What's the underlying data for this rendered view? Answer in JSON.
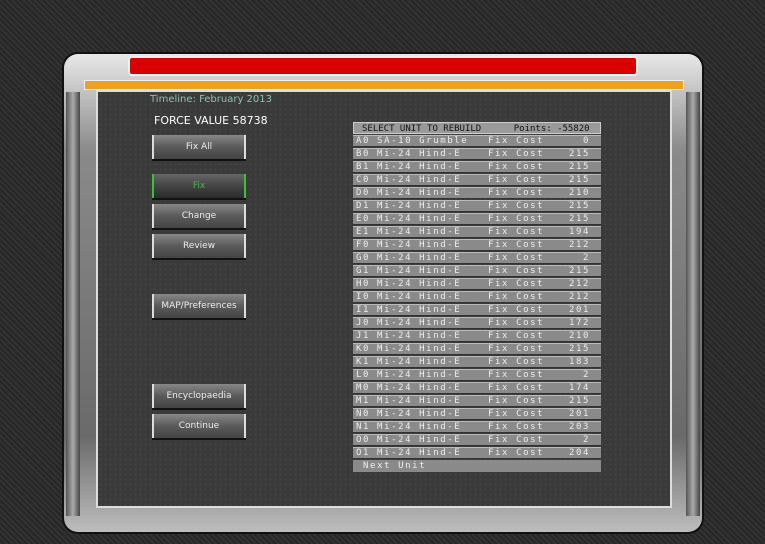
{
  "timeline": "Timeline: February 2013",
  "force_value": "FORCE VALUE 58738",
  "buttons": {
    "fix_all": "Fix All",
    "fix": "Fix",
    "change": "Change",
    "review": "Review",
    "map": "MAP/Preferences",
    "encyclopaedia": "Encyclopaedia",
    "continue": "Continue"
  },
  "list": {
    "title": "SELECT UNIT TO REBUILD",
    "points": "Points: -55820",
    "cost_label": "Fix Cost",
    "next": "Next Unit",
    "units": [
      {
        "id": "A0",
        "name": "SA-10 Grumble",
        "cost": "0"
      },
      {
        "id": "B0",
        "name": "Mi-24 Hind-E",
        "cost": "215"
      },
      {
        "id": "B1",
        "name": "Mi-24 Hind-E",
        "cost": "215"
      },
      {
        "id": "C0",
        "name": "Mi-24 Hind-E",
        "cost": "215"
      },
      {
        "id": "D0",
        "name": "Mi-24 Hind-E",
        "cost": "210"
      },
      {
        "id": "D1",
        "name": "Mi-24 Hind-E",
        "cost": "215"
      },
      {
        "id": "E0",
        "name": "Mi-24 Hind-E",
        "cost": "215"
      },
      {
        "id": "E1",
        "name": "Mi-24 Hind-E",
        "cost": "194"
      },
      {
        "id": "F0",
        "name": "Mi-24 Hind-E",
        "cost": "212"
      },
      {
        "id": "G0",
        "name": "Mi-24 Hind-E",
        "cost": "2"
      },
      {
        "id": "G1",
        "name": "Mi-24 Hind-E",
        "cost": "215"
      },
      {
        "id": "H0",
        "name": "Mi-24 Hind-E",
        "cost": "212"
      },
      {
        "id": "I0",
        "name": "Mi-24 Hind-E",
        "cost": "212"
      },
      {
        "id": "I1",
        "name": "Mi-24 Hind-E",
        "cost": "201"
      },
      {
        "id": "J0",
        "name": "Mi-24 Hind-E",
        "cost": "172"
      },
      {
        "id": "J1",
        "name": "Mi-24 Hind-E",
        "cost": "210"
      },
      {
        "id": "K0",
        "name": "Mi-24 Hind-E",
        "cost": "215"
      },
      {
        "id": "K1",
        "name": "Mi-24 Hind-E",
        "cost": "183"
      },
      {
        "id": "L0",
        "name": "Mi-24 Hind-E",
        "cost": "2"
      },
      {
        "id": "M0",
        "name": "Mi-24 Hind-E",
        "cost": "174"
      },
      {
        "id": "M1",
        "name": "Mi-24 Hind-E",
        "cost": "215"
      },
      {
        "id": "N0",
        "name": "Mi-24 Hind-E",
        "cost": "201"
      },
      {
        "id": "N1",
        "name": "Mi-24 Hind-E",
        "cost": "203"
      },
      {
        "id": "O0",
        "name": "Mi-24 Hind-E",
        "cost": "2"
      },
      {
        "id": "O1",
        "name": "Mi-24 Hind-E",
        "cost": "204"
      }
    ]
  },
  "colors": {
    "title_bar": "#d80000",
    "accent_bar": "#f0a020",
    "active_button": "#3fbf3f"
  }
}
